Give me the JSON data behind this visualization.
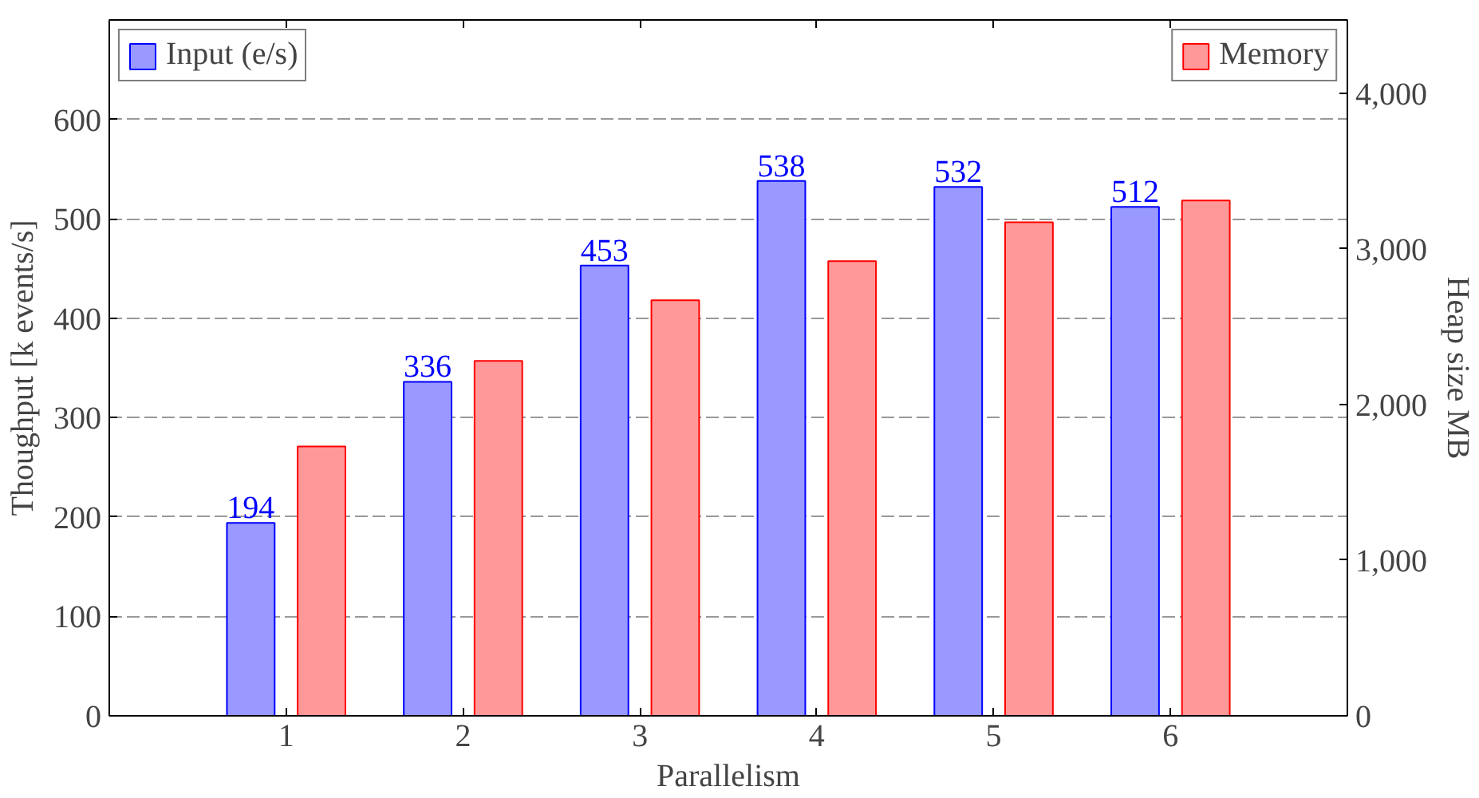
{
  "chart_data": {
    "type": "bar",
    "xlabel": "Parallelism",
    "ylabel": "Thoughput [k events/s]",
    "y2label": "Heap size MB",
    "x": [
      1,
      2,
      3,
      4,
      5,
      6
    ],
    "xlim": [
      0,
      7
    ],
    "xticks": [
      1,
      2,
      3,
      4,
      5,
      6
    ],
    "ylim": [
      0,
      700
    ],
    "yticks": [
      0,
      100,
      200,
      300,
      400,
      500,
      600
    ],
    "y2lim": [
      0,
      4470
    ],
    "y2ticks": [
      0,
      {
        "value": 1000,
        "label": "1,000"
      },
      {
        "value": 2000,
        "label": "2,000"
      },
      {
        "value": 3000,
        "label": "3,000"
      },
      {
        "value": 4000,
        "label": "4,000"
      }
    ],
    "grid": "y",
    "legend": "top",
    "series": [
      {
        "name": "Input (e/s)",
        "color": "#9999ff",
        "values": [
          194,
          336,
          453,
          538,
          532,
          512
        ],
        "value_labels": [
          "194",
          "336",
          "453",
          "538",
          "532",
          "512"
        ]
      },
      {
        "name": "Memory",
        "color": "#ff9999",
        "axis": "y2",
        "values": [
          1730,
          2280,
          2670,
          2920,
          3170,
          3310
        ]
      }
    ]
  }
}
